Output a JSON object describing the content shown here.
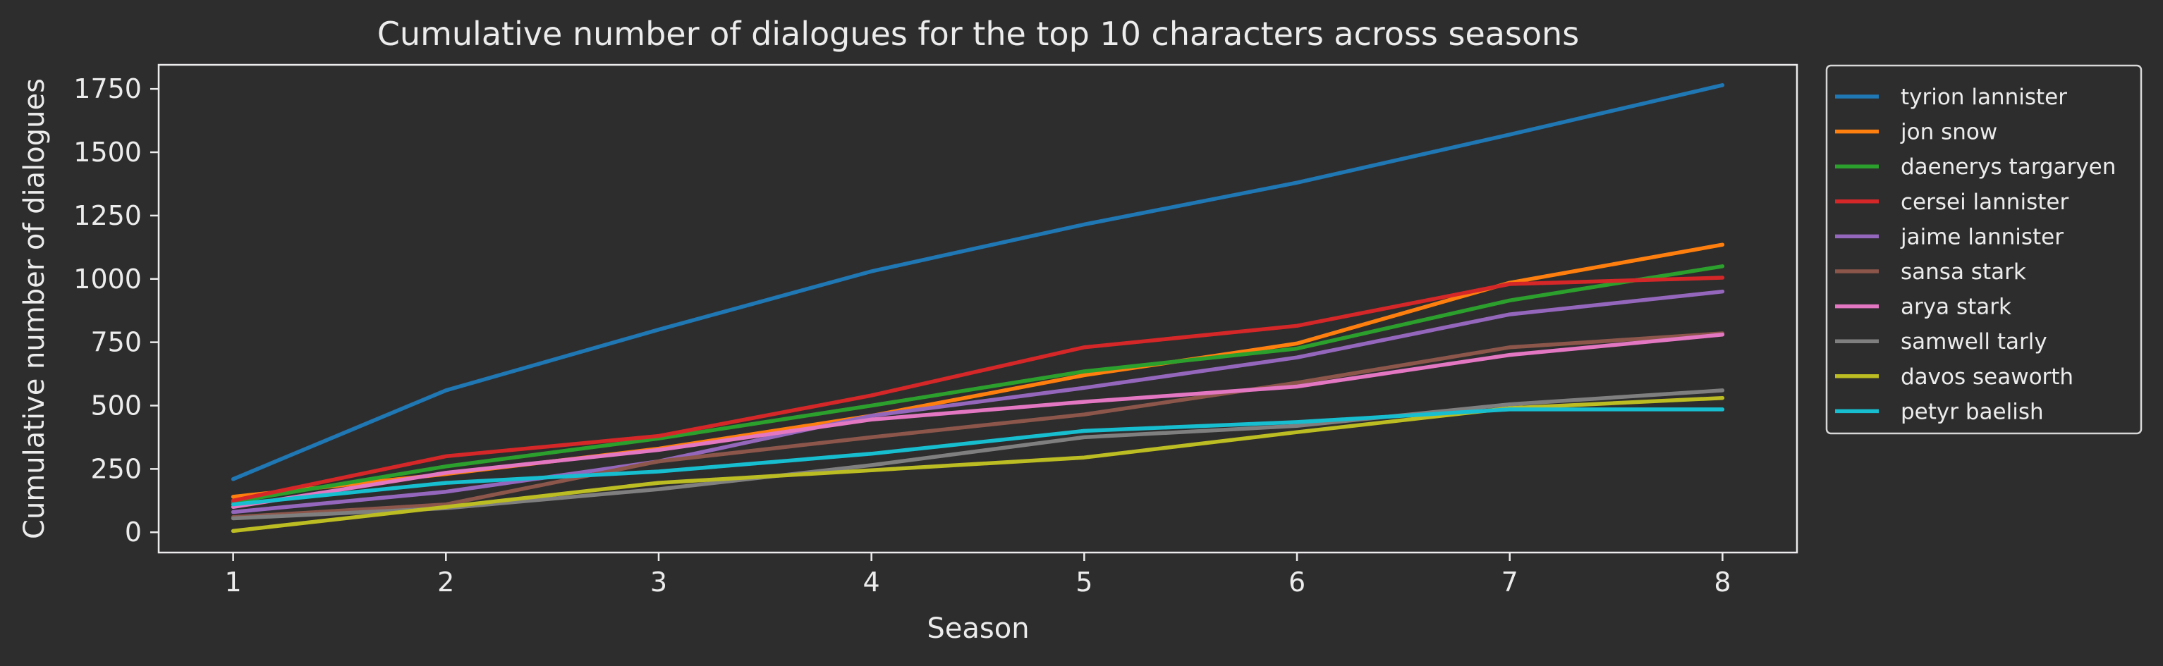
{
  "chart_data": {
    "type": "line",
    "title": "Cumulative number of dialogues for the top 10 characters across seasons",
    "xlabel": "Season",
    "ylabel": "Cumulative number of dialogues",
    "x": [
      1,
      2,
      3,
      4,
      5,
      6,
      7,
      8
    ],
    "xlim": [
      0.65,
      8.35
    ],
    "ylim": [
      -80,
      1845
    ],
    "xticks": [
      "1",
      "2",
      "3",
      "4",
      "5",
      "6",
      "7",
      "8"
    ],
    "yticks": [
      0,
      250,
      500,
      750,
      1000,
      1250,
      1500,
      1750
    ],
    "grid": false,
    "legend_position": "outside-right",
    "series": [
      {
        "name": "tyrion lannister",
        "color": "#1f77b4",
        "values": [
          210,
          560,
          800,
          1030,
          1215,
          1380,
          1570,
          1765
        ]
      },
      {
        "name": "jon snow",
        "color": "#ff7f0e",
        "values": [
          140,
          230,
          330,
          460,
          620,
          745,
          985,
          1135
        ]
      },
      {
        "name": "daenerys targaryen",
        "color": "#2ca02c",
        "values": [
          120,
          260,
          370,
          500,
          635,
          725,
          915,
          1050
        ]
      },
      {
        "name": "cersei lannister",
        "color": "#d62728",
        "values": [
          125,
          300,
          380,
          540,
          730,
          815,
          980,
          1005
        ]
      },
      {
        "name": "jaime lannister",
        "color": "#9467bd",
        "values": [
          80,
          160,
          280,
          460,
          570,
          690,
          860,
          950
        ]
      },
      {
        "name": "sansa stark",
        "color": "#8c564b",
        "values": [
          60,
          110,
          280,
          375,
          465,
          590,
          730,
          785
        ]
      },
      {
        "name": "arya stark",
        "color": "#e377c2",
        "values": [
          100,
          235,
          325,
          445,
          515,
          575,
          700,
          780
        ]
      },
      {
        "name": "samwell tarly",
        "color": "#7f7f7f",
        "values": [
          55,
          95,
          170,
          265,
          375,
          420,
          505,
          560
        ]
      },
      {
        "name": "davos seaworth",
        "color": "#bcbd22",
        "values": [
          5,
          100,
          195,
          245,
          295,
          395,
          490,
          530
        ]
      },
      {
        "name": "petyr baelish",
        "color": "#17becf",
        "values": [
          110,
          195,
          240,
          310,
          400,
          435,
          485,
          485
        ]
      }
    ]
  }
}
